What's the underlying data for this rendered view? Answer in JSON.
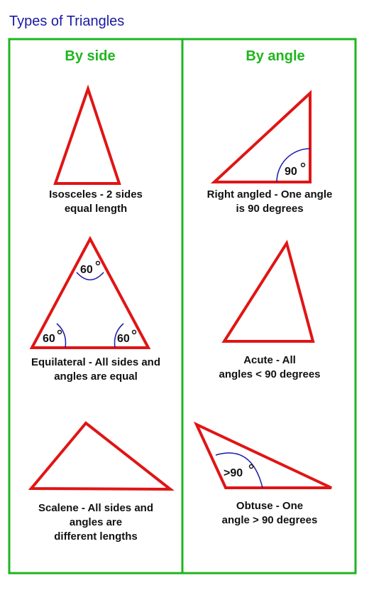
{
  "page": {
    "title": "Types of Triangles"
  },
  "columns": {
    "by_side": "By side",
    "by_angle": "By angle"
  },
  "triangles": {
    "isosceles": {
      "caption": "Isosceles - 2 sides\nequal length"
    },
    "equilateral": {
      "caption": "Equilateral - All sides and\nangles are equal",
      "angle_top": "60",
      "angle_left": "60",
      "angle_right": "60"
    },
    "scalene": {
      "caption": "Scalene - All sides and\nangles are\ndifferent lengths"
    },
    "right": {
      "caption": "Right angled - One angle\nis 90 degrees",
      "angle": "90"
    },
    "acute": {
      "caption": "Acute - All\nangles < 90 degrees"
    },
    "obtuse": {
      "caption": "Obtuse - One\nangle > 90 degrees",
      "angle": ">90"
    }
  },
  "colors": {
    "triangle_stroke": "#e01515",
    "frame": "#1fb51f",
    "title": "#1a1aa6",
    "arc": "#1a1aa6"
  }
}
